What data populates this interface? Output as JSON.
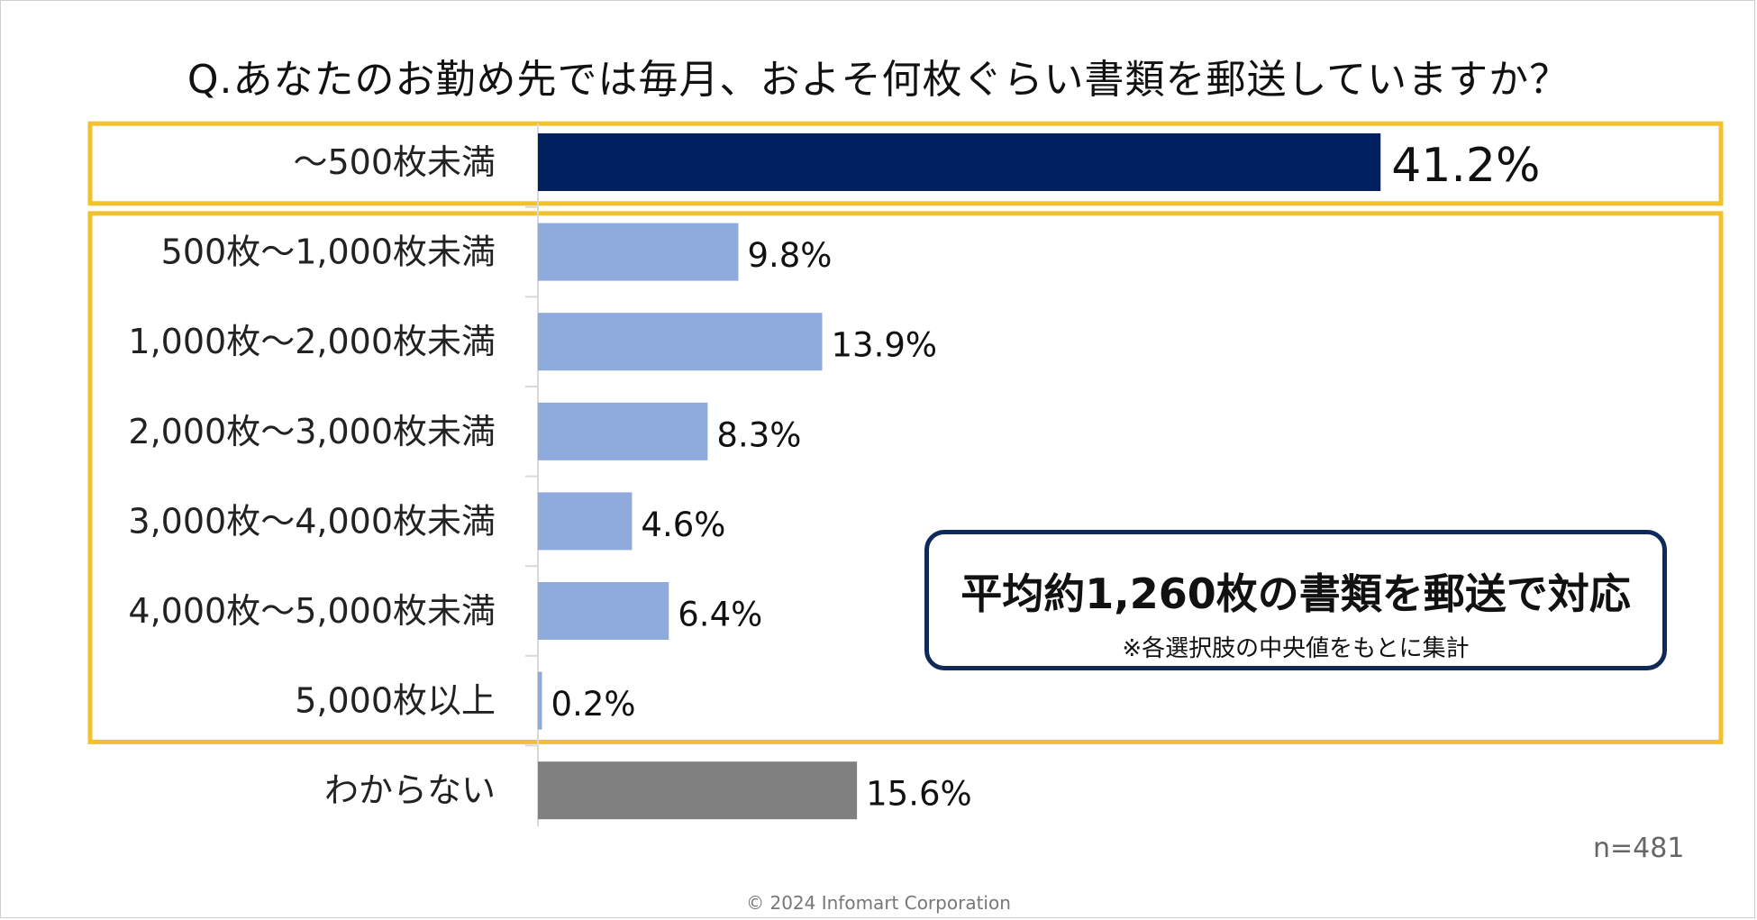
{
  "title": "Q.あなたのお勤め先では毎月、およそ何枚ぐらい書類を郵送していますか？",
  "callout": {
    "main": "平均約1,260枚の書類を郵送で対応",
    "note": "※各選択肢の中央値をもとに集計"
  },
  "sample_size": "n=481",
  "copyright": "© 2024 Infomart Corporation",
  "colors": {
    "highlight_bar": "#002060",
    "normal_bar": "#8faadc",
    "unknown_bar": "#808080",
    "highlight_frame": "#f2c12e",
    "callout_border": "#0f2a5a"
  },
  "chart_data": {
    "type": "bar",
    "orientation": "horizontal",
    "categories": [
      "～500枚未満",
      "500枚～1,000枚未満",
      "1,000枚～2,000枚未満",
      "2,000枚～3,000枚未満",
      "3,000枚～4,000枚未満",
      "4,000枚～5,000枚未満",
      "5,000枚以上",
      "わからない"
    ],
    "values": [
      41.2,
      9.8,
      13.9,
      8.3,
      4.6,
      6.4,
      0.2,
      15.6
    ],
    "value_labels": [
      "41.2%",
      "9.8%",
      "13.9%",
      "8.3%",
      "4.6%",
      "6.4%",
      "0.2%",
      "15.6%"
    ],
    "bar_color_keys": [
      "highlight_bar",
      "normal_bar",
      "normal_bar",
      "normal_bar",
      "normal_bar",
      "normal_bar",
      "normal_bar",
      "unknown_bar"
    ],
    "highlight_groups": [
      [
        0,
        0
      ],
      [
        1,
        6
      ]
    ],
    "xlim": [
      0,
      45
    ],
    "grid": false
  }
}
